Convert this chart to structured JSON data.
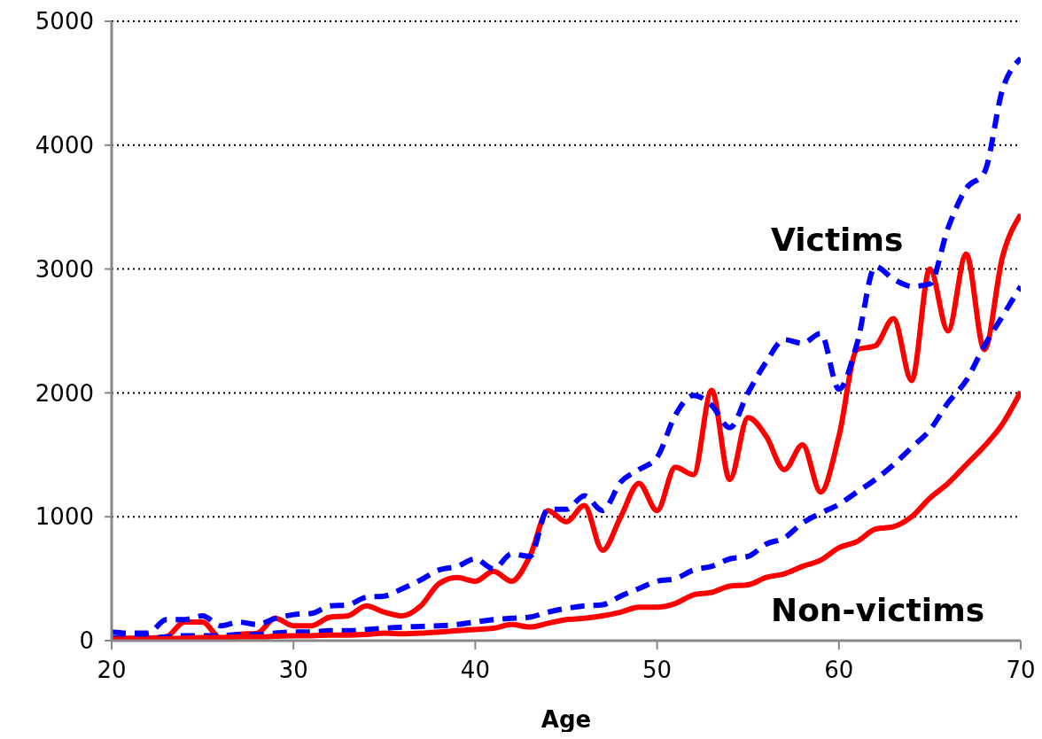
{
  "chart_data": {
    "type": "line",
    "xlabel": "Age",
    "x": [
      20,
      21,
      22,
      23,
      24,
      25,
      26,
      27,
      28,
      29,
      30,
      31,
      32,
      33,
      34,
      35,
      36,
      37,
      38,
      39,
      40,
      41,
      42,
      43,
      44,
      45,
      46,
      47,
      48,
      49,
      50,
      51,
      52,
      53,
      54,
      55,
      56,
      57,
      58,
      59,
      60,
      61,
      62,
      63,
      64,
      65,
      66,
      67,
      68,
      69,
      70
    ],
    "series": [
      {
        "color": "#ff0000",
        "line_style": "solid",
        "values": [
          20,
          20,
          20,
          30,
          150,
          150,
          20,
          50,
          60,
          180,
          120,
          120,
          190,
          200,
          280,
          230,
          200,
          280,
          460,
          510,
          480,
          560,
          480,
          680,
          1050,
          960,
          1090,
          730,
          1000,
          1270,
          1050,
          1400,
          1340,
          2020,
          1300,
          1800,
          1650,
          1380,
          1580,
          1200,
          1650,
          2350,
          2380,
          2600,
          2100,
          3000,
          2500,
          3120,
          2350,
          3100,
          3440
        ]
      },
      {
        "color": "#0000ff",
        "line_style": "dashed",
        "values": [
          70,
          60,
          60,
          170,
          170,
          200,
          120,
          150,
          130,
          180,
          210,
          220,
          280,
          290,
          350,
          360,
          420,
          490,
          570,
          600,
          660,
          580,
          700,
          680,
          1060,
          1060,
          1170,
          1050,
          1280,
          1380,
          1480,
          1820,
          1980,
          1900,
          1720,
          2000,
          2250,
          2430,
          2400,
          2480,
          2030,
          2400,
          3020,
          2920,
          2860,
          2880,
          3330,
          3650,
          3780,
          4450,
          4700
        ]
      },
      {
        "color": "#0000ff",
        "line_style": "dashed",
        "values": [
          20,
          20,
          20,
          30,
          40,
          40,
          40,
          50,
          50,
          60,
          70,
          70,
          80,
          80,
          90,
          100,
          110,
          115,
          120,
          130,
          150,
          170,
          180,
          190,
          230,
          260,
          280,
          290,
          360,
          420,
          480,
          500,
          570,
          600,
          660,
          680,
          780,
          830,
          950,
          1030,
          1100,
          1200,
          1300,
          1420,
          1560,
          1700,
          1920,
          2100,
          2380,
          2620,
          2860
        ]
      },
      {
        "color": "#ff0000",
        "line_style": "solid",
        "values": [
          10,
          10,
          10,
          15,
          20,
          25,
          25,
          30,
          30,
          35,
          40,
          40,
          45,
          45,
          50,
          60,
          55,
          60,
          70,
          80,
          90,
          100,
          130,
          110,
          140,
          170,
          180,
          200,
          230,
          270,
          270,
          300,
          370,
          390,
          440,
          450,
          510,
          540,
          600,
          650,
          750,
          800,
          900,
          920,
          1000,
          1150,
          1270,
          1420,
          1570,
          1750,
          2010
        ]
      }
    ],
    "xlim": [
      20,
      70
    ],
    "xticks": [
      20,
      30,
      40,
      50,
      60,
      70
    ],
    "ylim": [
      0,
      5000
    ],
    "yticks": [
      0,
      1000,
      2000,
      3000,
      4000,
      5000
    ],
    "grid": "y",
    "marker": "none",
    "legend": false,
    "annotations": [
      "Victims",
      "Non-victims"
    ]
  }
}
